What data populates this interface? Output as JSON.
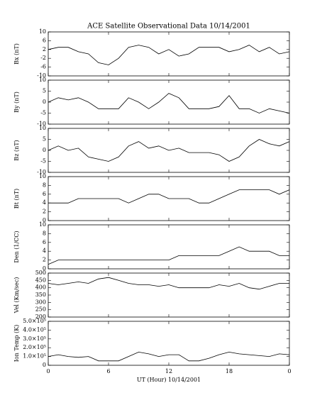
{
  "chart_data": [
    {
      "type": "line",
      "title": "ACE Satellite Observational Data   10/14/2001",
      "ylabel": "Bx (nT)",
      "x": [
        0,
        1,
        2,
        3,
        4,
        5,
        6,
        7,
        8,
        9,
        10,
        11,
        12,
        13,
        14,
        15,
        16,
        17,
        18,
        19,
        20,
        21,
        22,
        23,
        24
      ],
      "xlim": [
        0,
        24
      ],
      "ylim": [
        -10,
        10
      ],
      "yticks": [
        -10,
        -6,
        -2,
        2,
        6,
        10
      ],
      "series": [
        {
          "name": "Bx",
          "color": "#000000",
          "values": [
            2,
            3,
            3,
            1,
            0,
            -4,
            -5,
            -2,
            3,
            4,
            3,
            0,
            2,
            -1,
            0,
            3,
            3,
            3,
            1,
            2,
            4,
            1,
            3,
            0,
            1
          ]
        }
      ]
    },
    {
      "type": "line",
      "ylabel": "By (nT)",
      "x": [
        0,
        1,
        2,
        3,
        4,
        5,
        6,
        7,
        8,
        9,
        10,
        11,
        12,
        13,
        14,
        15,
        16,
        17,
        18,
        19,
        20,
        21,
        22,
        23,
        24
      ],
      "xlim": [
        0,
        24
      ],
      "ylim": [
        -10,
        10
      ],
      "yticks": [
        -10,
        -5,
        0,
        5,
        10
      ],
      "series": [
        {
          "name": "By",
          "color": "#000000",
          "values": [
            0,
            2,
            1,
            2,
            0,
            -3,
            -3,
            -3,
            2,
            0,
            -3,
            0,
            4,
            2,
            -3,
            -3,
            -3,
            -2,
            3,
            -3,
            -3,
            -5,
            -3,
            -4,
            -5
          ]
        }
      ]
    },
    {
      "type": "line",
      "ylabel": "Bz (nT)",
      "x": [
        0,
        1,
        2,
        3,
        4,
        5,
        6,
        7,
        8,
        9,
        10,
        11,
        12,
        13,
        14,
        15,
        16,
        17,
        18,
        19,
        20,
        21,
        22,
        23,
        24
      ],
      "xlim": [
        0,
        24
      ],
      "ylim": [
        -10,
        10
      ],
      "yticks": [
        -10,
        -5,
        0,
        5,
        10
      ],
      "series": [
        {
          "name": "Bz",
          "color": "#000000",
          "values": [
            0,
            2,
            0,
            1,
            -3,
            -4,
            -5,
            -3,
            2,
            4,
            1,
            2,
            0,
            1,
            -1,
            -1,
            -1,
            -2,
            -5,
            -3,
            2,
            5,
            3,
            2,
            4
          ]
        }
      ]
    },
    {
      "type": "line",
      "ylabel": "Bt (nT)",
      "x": [
        0,
        1,
        2,
        3,
        4,
        5,
        6,
        7,
        8,
        9,
        10,
        11,
        12,
        13,
        14,
        15,
        16,
        17,
        18,
        19,
        20,
        21,
        22,
        23,
        24
      ],
      "xlim": [
        0,
        24
      ],
      "ylim": [
        0,
        10
      ],
      "yticks": [
        0,
        2,
        4,
        6,
        8,
        10
      ],
      "series": [
        {
          "name": "Bt",
          "color": "#000000",
          "values": [
            4,
            4,
            4,
            5,
            5,
            5,
            5,
            5,
            4,
            5,
            6,
            6,
            5,
            5,
            5,
            4,
            4,
            5,
            6,
            7,
            7,
            7,
            7,
            6,
            7
          ]
        }
      ]
    },
    {
      "type": "line",
      "ylabel": "Den (1/CC)",
      "x": [
        0,
        1,
        2,
        3,
        4,
        5,
        6,
        7,
        8,
        9,
        10,
        11,
        12,
        13,
        14,
        15,
        16,
        17,
        18,
        19,
        20,
        21,
        22,
        23,
        24
      ],
      "xlim": [
        0,
        24
      ],
      "ylim": [
        0,
        10
      ],
      "yticks": [
        0,
        2,
        4,
        6,
        8,
        10
      ],
      "series": [
        {
          "name": "Den",
          "color": "#000000",
          "values": [
            1,
            2,
            2,
            2,
            2,
            2,
            2,
            2,
            2,
            2,
            2,
            2,
            2,
            3,
            3,
            3,
            3,
            3,
            4,
            5,
            4,
            4,
            4,
            3,
            3
          ]
        }
      ]
    },
    {
      "type": "line",
      "ylabel": "Vel (Km/sec)",
      "x": [
        0,
        1,
        2,
        3,
        4,
        5,
        6,
        7,
        8,
        9,
        10,
        11,
        12,
        13,
        14,
        15,
        16,
        17,
        18,
        19,
        20,
        21,
        22,
        23,
        24
      ],
      "xlim": [
        0,
        24
      ],
      "ylim": [
        200,
        500
      ],
      "yticks": [
        200,
        250,
        300,
        350,
        400,
        450,
        500
      ],
      "series": [
        {
          "name": "Vel",
          "color": "#000000",
          "values": [
            430,
            420,
            430,
            440,
            430,
            460,
            470,
            450,
            430,
            420,
            420,
            410,
            420,
            400,
            400,
            400,
            400,
            420,
            410,
            430,
            400,
            390,
            410,
            430,
            430
          ]
        }
      ]
    },
    {
      "type": "line",
      "ylabel": "Ion Temp (K)",
      "xlabel": "UT (Hour)  10/14/2001",
      "x": [
        0,
        1,
        2,
        3,
        4,
        5,
        6,
        7,
        8,
        9,
        10,
        11,
        12,
        13,
        14,
        15,
        16,
        17,
        18,
        19,
        20,
        21,
        22,
        23,
        24
      ],
      "xlim": [
        0,
        24
      ],
      "xticks": [
        0,
        6,
        12,
        18,
        {
          "value": 24,
          "label": "0"
        }
      ],
      "ylim": [
        0,
        500000
      ],
      "yticks": [
        0,
        {
          "value": 100000,
          "label": "1.0×10⁵"
        },
        {
          "value": 200000,
          "label": "2.0×10⁵"
        },
        {
          "value": 300000,
          "label": "3.0×10⁵"
        },
        {
          "value": 400000,
          "label": "4.0×10⁵"
        },
        {
          "value": 500000,
          "label": "5.0×10⁵"
        }
      ],
      "series": [
        {
          "name": "Temp",
          "color": "#000000",
          "values": [
            100000,
            120000,
            100000,
            90000,
            100000,
            50000,
            50000,
            50000,
            100000,
            150000,
            130000,
            100000,
            120000,
            120000,
            50000,
            50000,
            80000,
            120000,
            150000,
            130000,
            120000,
            110000,
            100000,
            130000,
            120000
          ]
        }
      ]
    }
  ]
}
